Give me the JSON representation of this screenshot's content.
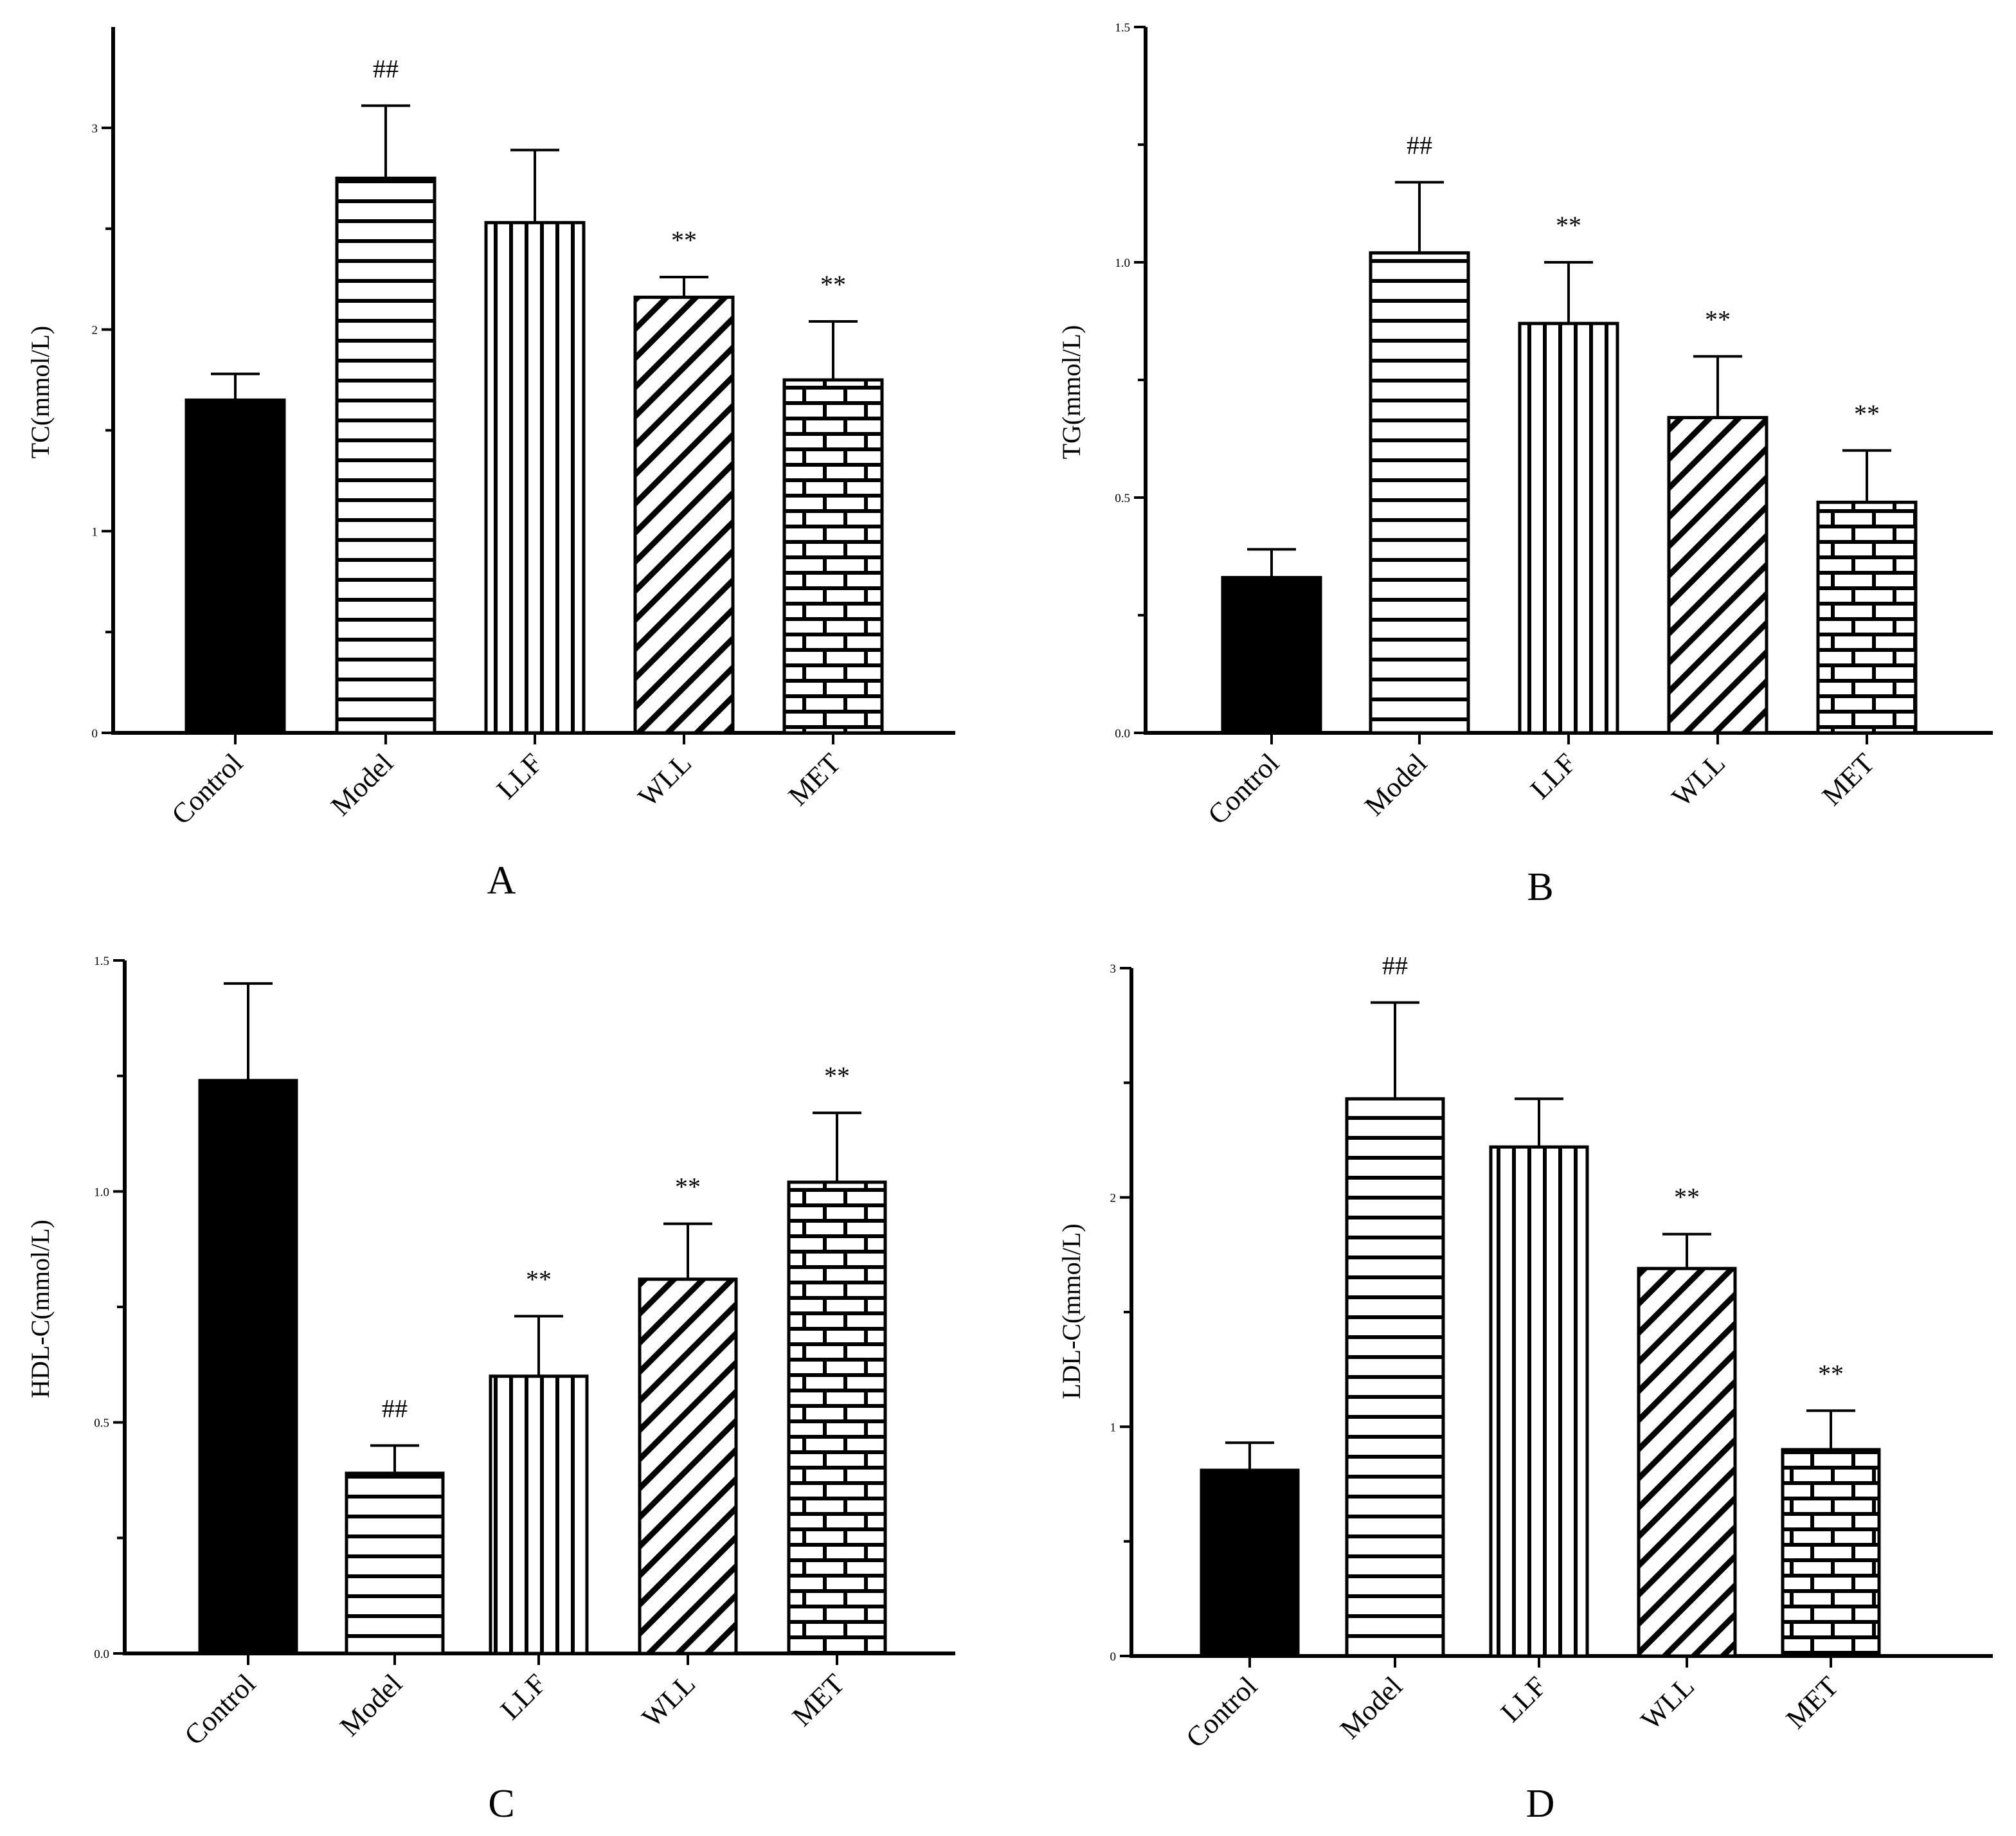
{
  "chart_data": [
    {
      "type": "bar",
      "panel": "A",
      "ylabel": "TC(mmol/L)",
      "ylim": [
        0,
        3.5
      ],
      "yticks": [
        0,
        1,
        2,
        3
      ],
      "ytick_labels": [
        "0",
        "1",
        "2",
        "3"
      ],
      "categories": [
        "Control",
        "Model",
        "LLF",
        "WLL",
        "MET"
      ],
      "values": [
        1.65,
        2.75,
        2.53,
        2.16,
        1.75
      ],
      "errors": [
        0.13,
        0.36,
        0.36,
        0.1,
        0.29
      ],
      "annotations": [
        "",
        "##",
        "",
        "**",
        "**"
      ]
    },
    {
      "type": "bar",
      "panel": "B",
      "ylabel": "TG(mmol/L)",
      "ylim": [
        0,
        1.5
      ],
      "yticks": [
        0,
        0.5,
        1.0,
        1.5
      ],
      "ytick_labels": [
        "0.0",
        "0.5",
        "1.0",
        "1.5"
      ],
      "categories": [
        "Control",
        "Model",
        "LLF",
        "WLL",
        "MET"
      ],
      "values": [
        0.33,
        1.02,
        0.87,
        0.67,
        0.49
      ],
      "errors": [
        0.06,
        0.15,
        0.13,
        0.13,
        0.11
      ],
      "annotations": [
        "",
        "##",
        "**",
        "**",
        "**"
      ]
    },
    {
      "type": "bar",
      "panel": "C",
      "ylabel": "HDL-C(mmol/L)",
      "ylim": [
        0,
        1.5
      ],
      "yticks": [
        0,
        0.5,
        1.0,
        1.5
      ],
      "ytick_labels": [
        "0.0",
        "0.5",
        "1.0",
        "1.5"
      ],
      "categories": [
        "Control",
        "Model",
        "LLF",
        "WLL",
        "MET"
      ],
      "values": [
        1.24,
        0.39,
        0.6,
        0.81,
        1.02
      ],
      "errors": [
        0.21,
        0.06,
        0.13,
        0.12,
        0.15
      ],
      "annotations": [
        "",
        "##",
        "**",
        "**",
        "**"
      ]
    },
    {
      "type": "bar",
      "panel": "D",
      "ylabel": "LDL-C(mmol/L)",
      "ylim": [
        0,
        3
      ],
      "yticks": [
        0,
        1,
        2,
        3
      ],
      "ytick_labels": [
        "0",
        "1",
        "2",
        "3"
      ],
      "categories": [
        "Control",
        "Model",
        "LLF",
        "WLL",
        "MET"
      ],
      "values": [
        0.81,
        2.43,
        2.22,
        1.69,
        0.9
      ],
      "errors": [
        0.12,
        0.42,
        0.21,
        0.15,
        0.17
      ],
      "annotations": [
        "",
        "##",
        "",
        "**",
        "**"
      ]
    }
  ],
  "bar_patterns": [
    "solid",
    "horizontal-lines",
    "vertical-lines",
    "diagonal-lines",
    "brick"
  ],
  "colors": {
    "ink": "#000000",
    "background": "#ffffff"
  }
}
